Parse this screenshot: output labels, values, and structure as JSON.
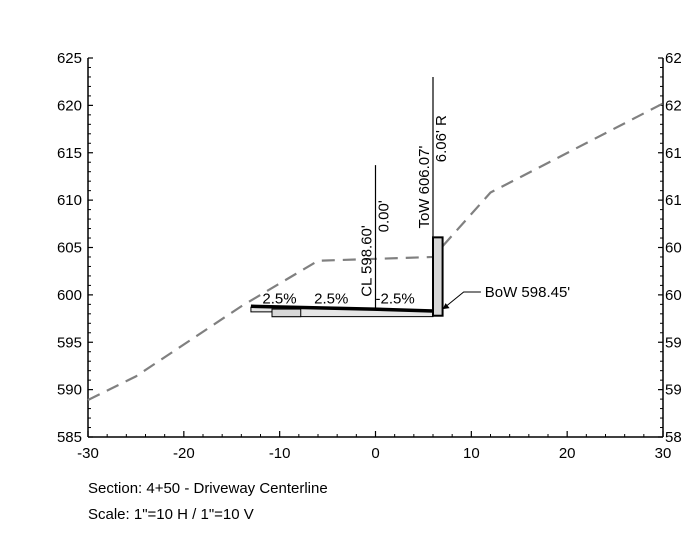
{
  "chart_data": {
    "type": "line",
    "xlim": [
      -30,
      30
    ],
    "ylim": [
      585,
      625
    ],
    "x_ticks": [
      "-30",
      "-20",
      "-10",
      "0",
      "10",
      "20",
      "30"
    ],
    "y_ticks": [
      "585",
      "590",
      "595",
      "600",
      "605",
      "610",
      "615",
      "620",
      "625"
    ],
    "right_y_ticks": [
      "58",
      "59",
      "59",
      "60",
      "60",
      "61",
      "61",
      "62",
      "62"
    ],
    "series": [
      {
        "kind": "existing-ground",
        "color": "#808080",
        "style": "dashed",
        "x": [
          -30,
          -25,
          -14,
          -6,
          6,
          12,
          30
        ],
        "y": [
          588.9,
          591.4,
          598.8,
          603.6,
          604.0,
          610.8,
          620.2
        ]
      },
      {
        "kind": "proposed-surface",
        "color": "#000000",
        "style": "solid",
        "x": [
          -13,
          -0.3,
          6
        ],
        "y": [
          598.8,
          598.5,
          598.3
        ]
      }
    ],
    "slab": {
      "x_start": -13,
      "x_end": 6,
      "top": 598.7,
      "bottom": 597.7
    },
    "curb": {
      "x_start": -10.8,
      "x_end": -7.8
    },
    "wall": {
      "x": 6,
      "bottom": 597.8,
      "top": 606.07,
      "width_ft": 1
    },
    "centerline": {
      "x": 0,
      "y_bottom": 598.5,
      "y_top": 613.7
    },
    "tow_line": {
      "x": 6,
      "y_top": 623.0
    },
    "annotations": {
      "cl_elev": "CL 598.60'",
      "cl_offset": "0.00'",
      "tow_elev": "ToW 606.07'",
      "tow_offset": "6.06' R",
      "bow": "BoW 598.45'",
      "slope_1": "2.5%",
      "slope_2": "2.5%",
      "slope_3": "-2.5%"
    },
    "caption": {
      "section": "Section: 4+50 - Driveway Centerline",
      "scale": "Scale: 1\"=10 H / 1\"=10 V"
    }
  }
}
